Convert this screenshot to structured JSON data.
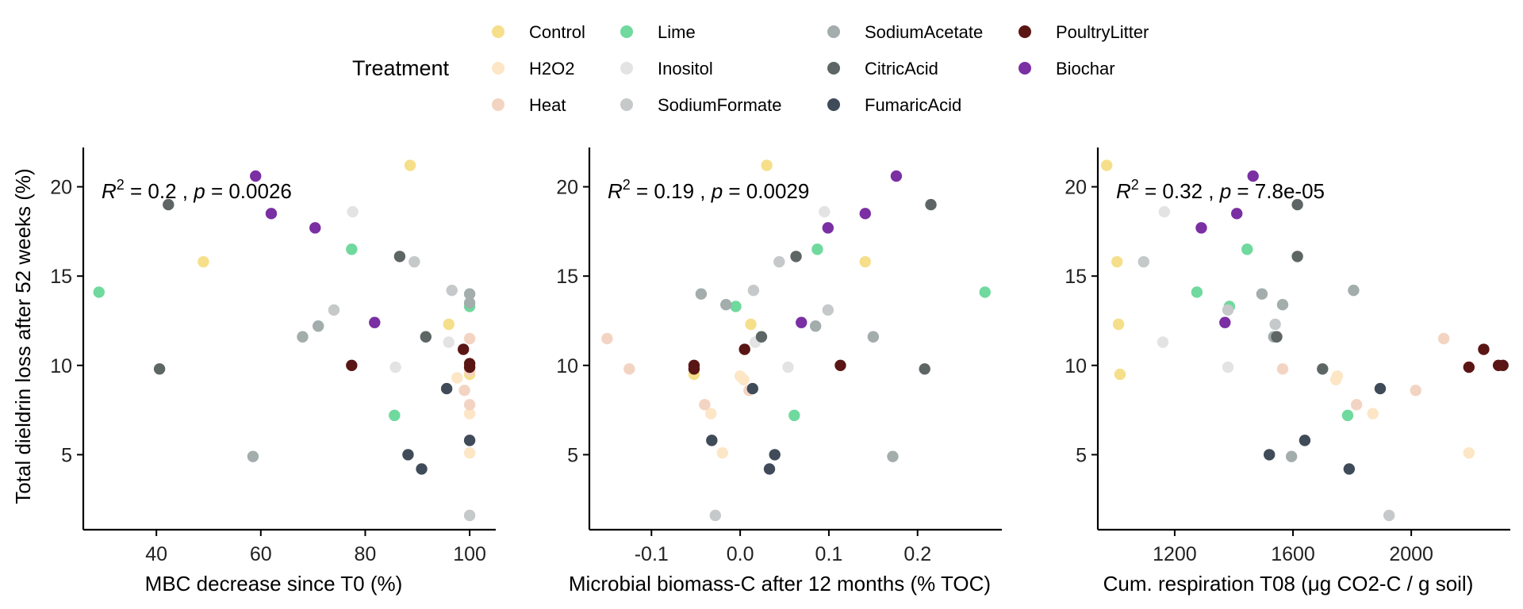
{
  "legend": {
    "title": "Treatment",
    "position": "top",
    "items": [
      {
        "label": "Control",
        "color": "#F6DF8A"
      },
      {
        "label": "H2O2",
        "color": "#FDE6C6"
      },
      {
        "label": "Heat",
        "color": "#F3D4C2"
      },
      {
        "label": "Lime",
        "color": "#6FD99E"
      },
      {
        "label": "Inositol",
        "color": "#E3E3E3"
      },
      {
        "label": "SodiumFormate",
        "color": "#C6C9C9"
      },
      {
        "label": "SodiumAcetate",
        "color": "#A2ADAC"
      },
      {
        "label": "CitricAcid",
        "color": "#5E6665"
      },
      {
        "label": "FumaricAcid",
        "color": "#404B59"
      },
      {
        "label": "PoultryLitter",
        "color": "#5A1614"
      },
      {
        "label": "Biochar",
        "color": "#7A2FA3"
      }
    ]
  },
  "y_axis": {
    "label": "Total dieldrin loss after 52 weeks (%)",
    "ticks": [
      5,
      10,
      15,
      20
    ]
  },
  "chart_data": [
    {
      "type": "scatter",
      "xlabel": "MBC decrease since T0 (%)",
      "ylabel": "Total dieldrin loss after 52 weeks (%)",
      "xlim": [
        26,
        105
      ],
      "ylim": [
        0.8,
        22.2
      ],
      "xticks": [
        40,
        60,
        80,
        100
      ],
      "xtick_labels": [
        "40",
        "60",
        "80",
        "100"
      ],
      "yticks": [
        5,
        10,
        15,
        20
      ],
      "grid": false,
      "annotation": {
        "r2": "0.2",
        "p": "0.0026"
      },
      "series": [
        {
          "name": "Control",
          "points": [
            [
              88.6,
              21.2
            ],
            [
              49,
              15.8
            ],
            [
              96,
              12.3
            ],
            [
              100,
              9.5
            ]
          ]
        },
        {
          "name": "H2O2",
          "points": [
            [
              100,
              9.9
            ],
            [
              97.6,
              9.3
            ],
            [
              100,
              7.3
            ],
            [
              100,
              5.1
            ]
          ]
        },
        {
          "name": "Heat",
          "points": [
            [
              100,
              11.5
            ],
            [
              99,
              8.6
            ],
            [
              100,
              7.8
            ],
            [
              100,
              9.7
            ]
          ]
        },
        {
          "name": "Lime",
          "points": [
            [
              29,
              14.1
            ],
            [
              77.4,
              16.5
            ],
            [
              100,
              13.3
            ],
            [
              85.6,
              7.2
            ]
          ]
        },
        {
          "name": "Inositol",
          "points": [
            [
              77.6,
              18.6
            ],
            [
              96,
              11.3
            ],
            [
              85.8,
              9.9
            ]
          ]
        },
        {
          "name": "SodiumFormate",
          "points": [
            [
              89.4,
              15.8
            ],
            [
              74,
              13.1
            ],
            [
              96.6,
              14.2
            ],
            [
              100,
              1.6
            ]
          ]
        },
        {
          "name": "SodiumAcetate",
          "points": [
            [
              100,
              14
            ],
            [
              100,
              13.5
            ],
            [
              71,
              12.2
            ],
            [
              68,
              11.6
            ],
            [
              58.5,
              4.9
            ]
          ]
        },
        {
          "name": "CitricAcid",
          "points": [
            [
              42.3,
              19
            ],
            [
              86.6,
              16.1
            ],
            [
              91.6,
              11.6
            ],
            [
              40.6,
              9.8
            ]
          ]
        },
        {
          "name": "FumaricAcid",
          "points": [
            [
              95.6,
              8.7
            ],
            [
              100,
              5.8
            ],
            [
              88.2,
              5
            ],
            [
              90.8,
              4.2
            ]
          ]
        },
        {
          "name": "PoultryLitter",
          "points": [
            [
              77.4,
              10
            ],
            [
              98.8,
              10.9
            ],
            [
              100,
              10.1
            ],
            [
              100,
              9.9
            ]
          ]
        },
        {
          "name": "Biochar",
          "points": [
            [
              59,
              20.6
            ],
            [
              62,
              18.5
            ],
            [
              70.4,
              17.7
            ],
            [
              81.8,
              12.4
            ]
          ]
        }
      ]
    },
    {
      "type": "scatter",
      "xlabel": "Microbial biomass-C after 12 months (% TOC)",
      "ylabel": "",
      "xlim": [
        -0.17,
        0.295
      ],
      "ylim": [
        0.8,
        22.2
      ],
      "xticks": [
        -0.1,
        0,
        0.1,
        0.2
      ],
      "xtick_labels": [
        "-0.1",
        "0.0",
        "0.1",
        "0.2"
      ],
      "yticks": [
        5,
        10,
        15,
        20
      ],
      "grid": false,
      "annotation": {
        "r2": "0.19",
        "p": "0.0029"
      },
      "series": [
        {
          "name": "Control",
          "points": [
            [
              0.03,
              21.2
            ],
            [
              0.141,
              15.8
            ],
            [
              0.012,
              12.3
            ],
            [
              -0.052,
              9.5
            ]
          ]
        },
        {
          "name": "H2O2",
          "points": [
            [
              0,
              9.4
            ],
            [
              0.004,
              9.2
            ],
            [
              -0.033,
              7.3
            ],
            [
              -0.02,
              5.1
            ]
          ]
        },
        {
          "name": "Heat",
          "points": [
            [
              -0.15,
              11.5
            ],
            [
              -0.125,
              9.8
            ],
            [
              -0.04,
              7.8
            ],
            [
              0.01,
              8.6
            ]
          ]
        },
        {
          "name": "Lime",
          "points": [
            [
              0.087,
              16.5
            ],
            [
              -0.005,
              13.3
            ],
            [
              0.276,
              14.1
            ],
            [
              0.061,
              7.2
            ]
          ]
        },
        {
          "name": "Inositol",
          "points": [
            [
              0.095,
              18.6
            ],
            [
              0.017,
              11.3
            ],
            [
              0.054,
              9.9
            ]
          ]
        },
        {
          "name": "SodiumFormate",
          "points": [
            [
              0.044,
              15.8
            ],
            [
              0.099,
              13.1
            ],
            [
              0.015,
              14.2
            ],
            [
              -0.028,
              1.6
            ]
          ]
        },
        {
          "name": "SodiumAcetate",
          "points": [
            [
              -0.044,
              14
            ],
            [
              -0.016,
              13.4
            ],
            [
              0.085,
              12.2
            ],
            [
              0.15,
              11.6
            ],
            [
              0.172,
              4.9
            ]
          ]
        },
        {
          "name": "CitricAcid",
          "points": [
            [
              0.215,
              19
            ],
            [
              0.063,
              16.1
            ],
            [
              0.024,
              11.6
            ],
            [
              0.208,
              9.8
            ]
          ]
        },
        {
          "name": "FumaricAcid",
          "points": [
            [
              0.014,
              8.7
            ],
            [
              -0.032,
              5.8
            ],
            [
              0.039,
              5
            ],
            [
              0.033,
              4.2
            ]
          ]
        },
        {
          "name": "PoultryLitter",
          "points": [
            [
              0.113,
              10
            ],
            [
              0.005,
              10.9
            ],
            [
              -0.052,
              10
            ],
            [
              -0.052,
              9.8
            ]
          ]
        },
        {
          "name": "Biochar",
          "points": [
            [
              0.176,
              20.6
            ],
            [
              0.141,
              18.5
            ],
            [
              0.099,
              17.7
            ],
            [
              0.069,
              12.4
            ]
          ]
        }
      ]
    },
    {
      "type": "scatter",
      "xlabel": "Cum. respiration T08 (μg CO2-C / g soil)",
      "ylabel": "",
      "xlim": [
        940,
        2335
      ],
      "ylim": [
        0.8,
        22.2
      ],
      "xticks": [
        1200,
        1600,
        2000
      ],
      "xtick_labels": [
        "1200",
        "1600",
        "2000"
      ],
      "yticks": [
        5,
        10,
        15,
        20
      ],
      "grid": false,
      "annotation": {
        "r2": "0.32",
        "p": "7.8e-05"
      },
      "series": [
        {
          "name": "Control",
          "points": [
            [
              970,
              21.2
            ],
            [
              1005,
              15.8
            ],
            [
              1010,
              12.3
            ],
            [
              1015,
              9.5
            ]
          ]
        },
        {
          "name": "H2O2",
          "points": [
            [
              1750,
              9.4
            ],
            [
              1745,
              9.2
            ],
            [
              1870,
              7.3
            ],
            [
              2195,
              5.1
            ]
          ]
        },
        {
          "name": "Heat",
          "points": [
            [
              2110,
              11.5
            ],
            [
              1565,
              9.8
            ],
            [
              1815,
              7.8
            ],
            [
              2015,
              8.6
            ]
          ]
        },
        {
          "name": "Lime",
          "points": [
            [
              1445,
              16.5
            ],
            [
              1385,
              13.3
            ],
            [
              1275,
              14.1
            ],
            [
              1785,
              7.2
            ]
          ]
        },
        {
          "name": "Inositol",
          "points": [
            [
              1165,
              18.6
            ],
            [
              1160,
              11.3
            ],
            [
              1380,
              9.9
            ]
          ]
        },
        {
          "name": "SodiumFormate",
          "points": [
            [
              1095,
              15.8
            ],
            [
              1380,
              13.1
            ],
            [
              1540,
              12.3
            ],
            [
              1925,
              1.6
            ]
          ]
        },
        {
          "name": "SodiumAcetate",
          "points": [
            [
              1495,
              14
            ],
            [
              1565,
              13.4
            ],
            [
              1805,
              14.2
            ],
            [
              1535,
              11.6
            ],
            [
              1595,
              4.9
            ]
          ]
        },
        {
          "name": "CitricAcid",
          "points": [
            [
              1615,
              19
            ],
            [
              1615,
              16.1
            ],
            [
              1545,
              11.6
            ],
            [
              1700,
              9.8
            ]
          ]
        },
        {
          "name": "FumaricAcid",
          "points": [
            [
              1895,
              8.7
            ],
            [
              1640,
              5.8
            ],
            [
              1520,
              5
            ],
            [
              1790,
              4.2
            ]
          ]
        },
        {
          "name": "PoultryLitter",
          "points": [
            [
              2245,
              10.9
            ],
            [
              2195,
              9.9
            ],
            [
              2295,
              10
            ],
            [
              2310,
              10
            ]
          ]
        },
        {
          "name": "Biochar",
          "points": [
            [
              1465,
              20.6
            ],
            [
              1410,
              18.5
            ],
            [
              1290,
              17.7
            ],
            [
              1370,
              12.4
            ]
          ]
        }
      ]
    }
  ]
}
